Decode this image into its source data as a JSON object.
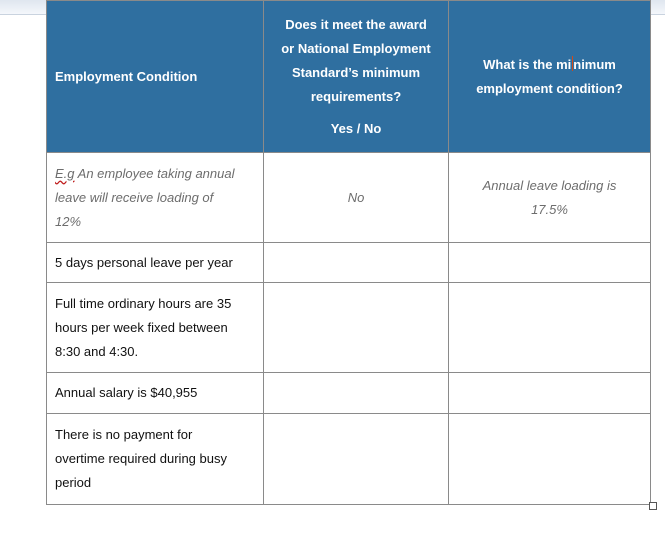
{
  "table": {
    "headers": {
      "col1": "Employment Condition",
      "col2_line1": "Does it meet the award",
      "col2_line2": "or National Employment",
      "col2_line3": "Standard’s minimum",
      "col2_line4": "requirements?",
      "col2_yesno": "Yes / No",
      "col3_part1": "What is the mi",
      "col3_part2": "nimum",
      "col3_line2": "employment condition?"
    },
    "example": {
      "abbr": "E.g",
      "line1_rest": " An employee taking annual",
      "line2": "leave will receive loading of",
      "line3": "12%",
      "meets": "No",
      "minimum_line1": "Annual leave loading is",
      "minimum_line2": "17.5%"
    },
    "rows": [
      {
        "lines": [
          "5 days personal leave per year"
        ]
      },
      {
        "lines": [
          "Full time ordinary hours are 35",
          "hours per week fixed between",
          "8:30 and 4:30."
        ]
      },
      {
        "lines": [
          "Annual salary is $40,955"
        ]
      },
      {
        "lines": [
          "There is no payment for",
          "overtime required during busy",
          "period"
        ]
      }
    ]
  }
}
